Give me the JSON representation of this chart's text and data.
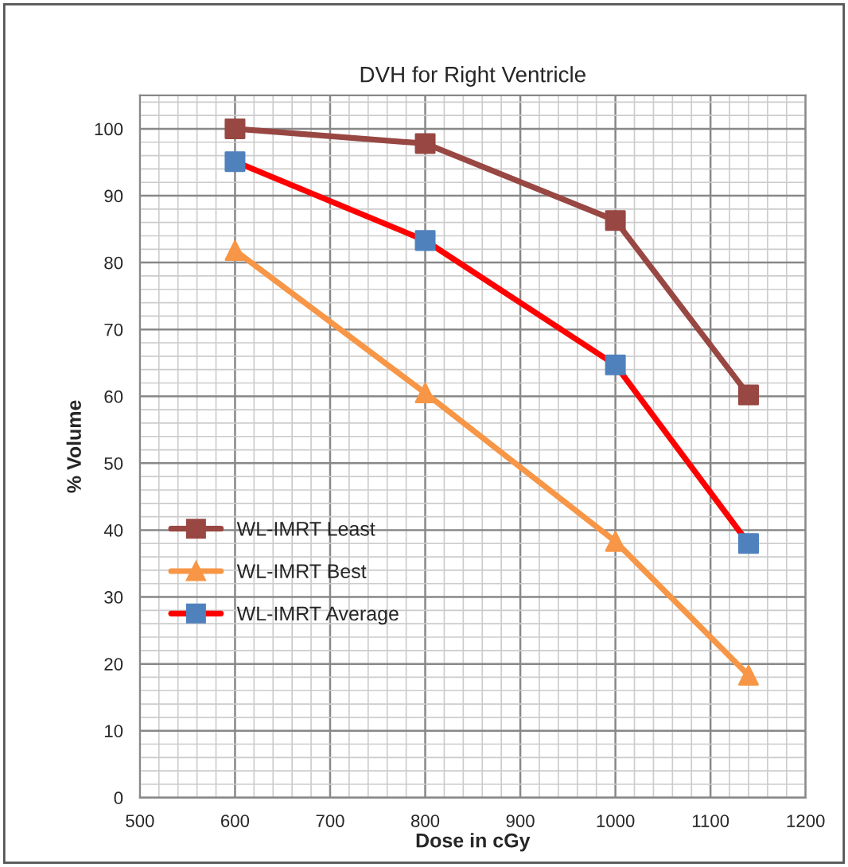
{
  "chart_data": {
    "type": "line",
    "title": "DVH for Right Ventricle",
    "xlabel": "Dose in cGy",
    "ylabel": "% Volume",
    "x": [
      600,
      800,
      1000,
      1140
    ],
    "series": [
      {
        "name": "WL-IMRT Least",
        "color": "#984742",
        "marker": "square",
        "values": [
          100,
          97.8,
          86.3,
          60.2
        ]
      },
      {
        "name": "WL-IMRT Best",
        "color": "#f79646",
        "marker": "triangle",
        "values": [
          81.8,
          60.5,
          38.3,
          18.3
        ]
      },
      {
        "name": "WL-IMRT Average",
        "color": "#ff0000",
        "marker": "square",
        "colors": [
          "#4f81bd",
          "#4f81bd",
          "#4f81bd",
          "#4f81bd"
        ],
        "values": [
          95.1,
          83.3,
          64.7,
          38.0
        ]
      }
    ],
    "xlim": [
      500,
      1200
    ],
    "xticks": [
      500,
      600,
      700,
      800,
      900,
      1000,
      1100,
      1200
    ],
    "ylim": [
      0,
      105
    ],
    "yticks": [
      0,
      10,
      20,
      30,
      40,
      50,
      60,
      70,
      80,
      90,
      100
    ],
    "grid": true,
    "legend": "left",
    "line_style": "solid"
  }
}
